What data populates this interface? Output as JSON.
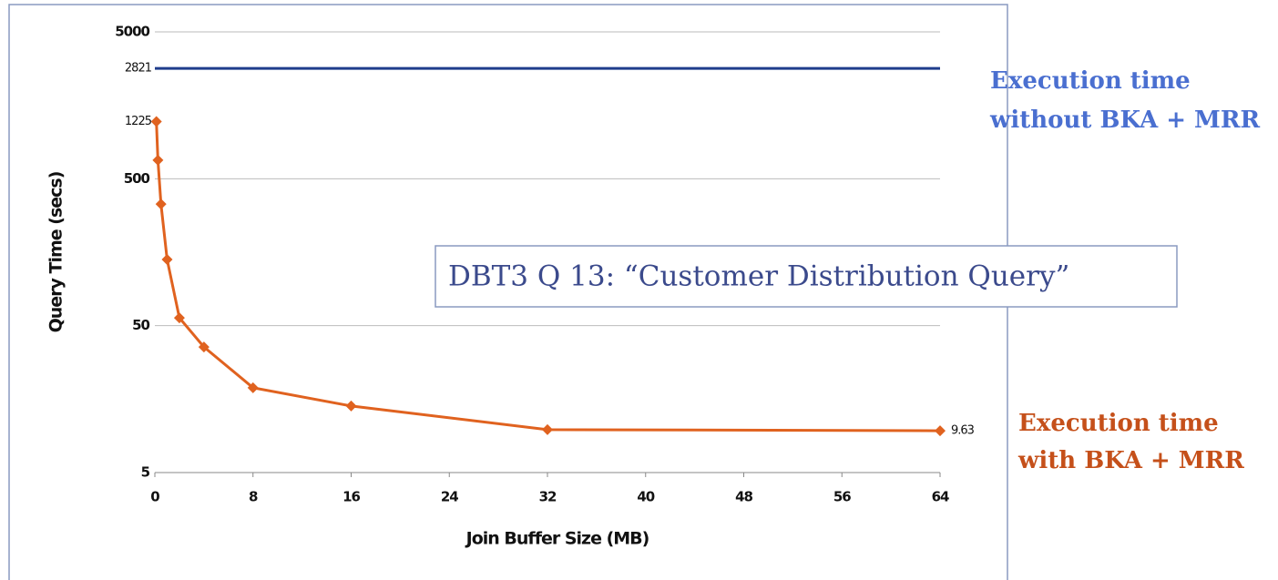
{
  "chart_data": {
    "type": "line",
    "title": "DBT3 Q 13: “Customer Distribution Query”",
    "xlabel": "Join Buffer Size (MB)",
    "ylabel": "Query Time (secs)",
    "annotations": [
      "Execution time",
      "without BKA + MRR",
      "Execution time",
      "with BKA + MRR"
    ],
    "yscale": "log",
    "grid": true,
    "xlim": [
      0,
      64
    ],
    "xticks": [
      0,
      8,
      16,
      24,
      32,
      40,
      48,
      56,
      64
    ],
    "ylim": [
      5,
      5000
    ],
    "yticks": [
      5,
      50,
      500,
      5000
    ],
    "series": [
      {
        "color": "#1f3c8c",
        "x": [
          0,
          64
        ],
        "values": [
          2821,
          2821
        ]
      },
      {
        "color": "#e0621f",
        "x": [
          0.125,
          0.25,
          0.5,
          1,
          2,
          4,
          8,
          16,
          32,
          64
        ],
        "values": [
          1225,
          670,
          336,
          141,
          56.5,
          35.8,
          18.9,
          14.2,
          9.8,
          9.63
        ]
      }
    ]
  }
}
